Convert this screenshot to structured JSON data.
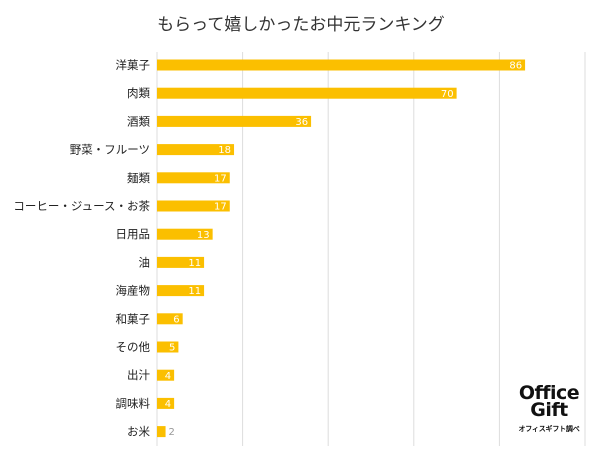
{
  "chart_data": {
    "type": "bar",
    "orientation": "horizontal",
    "title": "もらって嬉しかったお中元ランキング",
    "categories": [
      "洋菓子",
      "肉類",
      "酒類",
      "野菜・フルーツ",
      "麺類",
      "コーヒー・ジュース・お茶",
      "日用品",
      "油",
      "海産物",
      "和菓子",
      "その他",
      "出汁",
      "調味料",
      "お米"
    ],
    "values": [
      86,
      70,
      36,
      18,
      17,
      17,
      13,
      11,
      11,
      6,
      5,
      4,
      4,
      2
    ],
    "xlim": [
      0,
      100
    ],
    "grid": true,
    "bar_color": "#fbbf00"
  },
  "branding": {
    "logo_line1": "Office",
    "logo_line2": "Gift",
    "caption": "オフィスギフト調べ"
  }
}
